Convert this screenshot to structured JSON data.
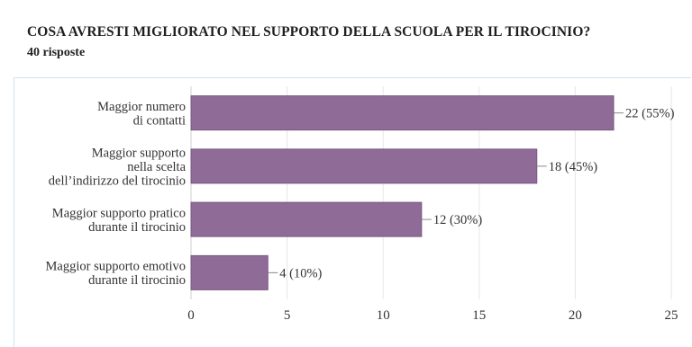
{
  "header": {
    "title": "COSA AVRESTI MIGLIORATO NEL SUPPORTO DELLA SCUOLA PER IL TIROCINIO?",
    "responses": "40 risposte"
  },
  "chart_data": {
    "type": "bar",
    "orientation": "horizontal",
    "title": "COSA AVRESTI MIGLIORATO NEL SUPPORTO DELLA SCUOLA PER IL TIROCINIO?",
    "subtitle": "40 risposte",
    "categories": [
      [
        "Maggior numero",
        "di contatti"
      ],
      [
        "Maggior supporto",
        "nella scelta",
        "dell’indirizzo del tirocinio"
      ],
      [
        "Maggior supporto pratico",
        "durante il tirocinio"
      ],
      [
        "Maggior supporto emotivo",
        "durante il tirocinio"
      ]
    ],
    "values": [
      22,
      18,
      12,
      4
    ],
    "value_labels": [
      "22 (55%)",
      "18 (45%)",
      "12 (30%)",
      "4 (10%)"
    ],
    "xlim": [
      0,
      25
    ],
    "xticks": [
      0,
      5,
      10,
      15,
      20,
      25
    ],
    "grid": true,
    "bar_color": "#8f6b98",
    "grid_color": "#e6e6e6"
  }
}
